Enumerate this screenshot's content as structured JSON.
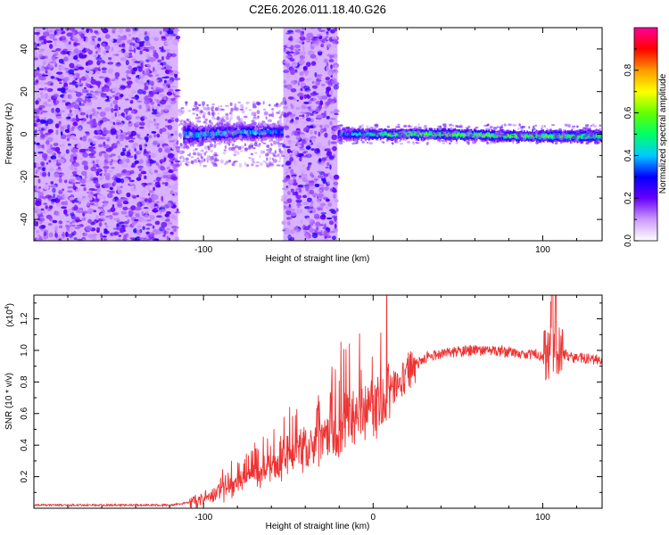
{
  "title": "C2E6.2026.011.18.40.G26",
  "chart_data": [
    {
      "type": "heatmap",
      "xlabel": "Height of straight line (km)",
      "ylabel": "Frequency (Hz)",
      "xlim": [
        -200,
        135
      ],
      "ylim": [
        -50,
        50
      ],
      "xticks": [
        -100,
        0,
        100
      ],
      "xtick_labels": [
        "-100",
        "",
        "100"
      ],
      "yticks": [
        -40,
        -20,
        0,
        20,
        40
      ],
      "ytick_labels": [
        "-40",
        "-20",
        "0",
        "20",
        "40"
      ],
      "grid": false,
      "noise_regions": [
        {
          "x": [
            -200,
            -115
          ],
          "y": [
            -50,
            50
          ],
          "level": 0.15
        },
        {
          "x": [
            -53,
            -21
          ],
          "y": [
            -50,
            50
          ],
          "level": 0.15
        }
      ],
      "signal_band": [
        {
          "x": -112,
          "freq": 0,
          "width": 12,
          "amplitude": 0.3
        },
        {
          "x": -100,
          "freq": 0,
          "width": 8,
          "amplitude": 0.35
        },
        {
          "x": -80,
          "freq": 1,
          "width": 8,
          "amplitude": 0.35
        },
        {
          "x": -55,
          "freq": 1,
          "width": 7,
          "amplitude": 0.3
        },
        {
          "x": -18,
          "freq": 0,
          "width": 6,
          "amplitude": 0.3
        },
        {
          "x": 0,
          "freq": 0,
          "width": 5,
          "amplitude": 0.45
        },
        {
          "x": 40,
          "freq": 0,
          "width": 5,
          "amplitude": 0.5
        },
        {
          "x": 90,
          "freq": -1,
          "width": 5,
          "amplitude": 0.5
        },
        {
          "x": 135,
          "freq": -1,
          "width": 6,
          "amplitude": 0.45
        }
      ],
      "colorbar": {
        "label": "Normalized spectral amplitude",
        "range": [
          0,
          1
        ],
        "ticks": [
          0.0,
          0.2,
          0.4,
          0.6,
          0.8
        ],
        "tick_labels": [
          "0.0",
          "0.2",
          "0.4",
          "0.6",
          "0.8"
        ],
        "colormap": [
          "#ffffff",
          "#cc99ff",
          "#6600ff",
          "#0000ff",
          "#00ccff",
          "#00ff66",
          "#66ff00",
          "#ffff00",
          "#ff9900",
          "#ff0000",
          "#ff0099"
        ]
      }
    },
    {
      "type": "line",
      "xlabel": "Height of straight line (km)",
      "ylabel": "SNR (10 * v/v)",
      "scale_label": "(x10",
      "scale_exponent": "4",
      "xlim": [
        -200,
        135
      ],
      "ylim": [
        0,
        1.35
      ],
      "xticks": [
        -100,
        0,
        100
      ],
      "xtick_labels": [
        "-100",
        "0",
        "100"
      ],
      "yticks": [
        0.2,
        0.4,
        0.6,
        0.8,
        1.0,
        1.2
      ],
      "ytick_labels": [
        "0.2",
        "0.4",
        "0.6",
        "0.8",
        "1.0",
        "1.2"
      ],
      "series": [
        {
          "name": "SNR",
          "color": "#ee3333",
          "x": [
            -200,
            -150,
            -120,
            -105,
            -90,
            -80,
            -70,
            -60,
            -50,
            -40,
            -30,
            -20,
            -10,
            0,
            10,
            20,
            30,
            40,
            50,
            60,
            70,
            80,
            90,
            100,
            104,
            106,
            110,
            120,
            135
          ],
          "values": [
            0.02,
            0.02,
            0.02,
            0.04,
            0.1,
            0.15,
            0.2,
            0.25,
            0.3,
            0.38,
            0.42,
            0.5,
            0.58,
            0.65,
            0.75,
            0.86,
            0.95,
            0.98,
            0.99,
            1.0,
            1.0,
            0.99,
            0.98,
            0.97,
            1.0,
            1.1,
            0.98,
            0.95,
            0.94
          ]
        }
      ]
    }
  ]
}
